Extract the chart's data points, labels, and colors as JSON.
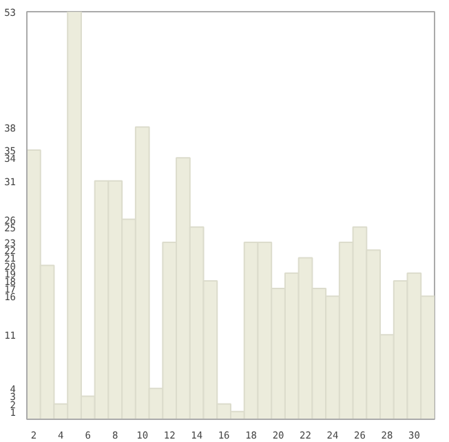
{
  "chart_data": {
    "type": "bar",
    "x": [
      2,
      3,
      4,
      5,
      6,
      7,
      8,
      9,
      10,
      11,
      12,
      13,
      14,
      15,
      16,
      17,
      18,
      19,
      20,
      21,
      22,
      23,
      24,
      25,
      26,
      27,
      28,
      29,
      30,
      31
    ],
    "values": [
      35,
      20,
      2,
      53,
      3,
      31,
      31,
      26,
      38,
      4,
      23,
      34,
      25,
      18,
      2,
      1,
      23,
      23,
      17,
      19,
      21,
      17,
      16,
      23,
      25,
      22,
      11,
      18,
      19,
      16
    ],
    "color": "#ececdc",
    "xlim": [
      1.5,
      31.5
    ],
    "xticks": [
      2,
      4,
      6,
      8,
      10,
      12,
      14,
      16,
      18,
      20,
      22,
      24,
      26,
      28,
      30
    ],
    "ylim": [
      0,
      53
    ],
    "yticks": [
      1,
      2,
      3,
      4,
      11,
      16,
      17,
      18,
      19,
      20,
      21,
      22,
      23,
      25,
      26,
      31,
      34,
      35,
      38,
      53
    ],
    "grid": false
  }
}
